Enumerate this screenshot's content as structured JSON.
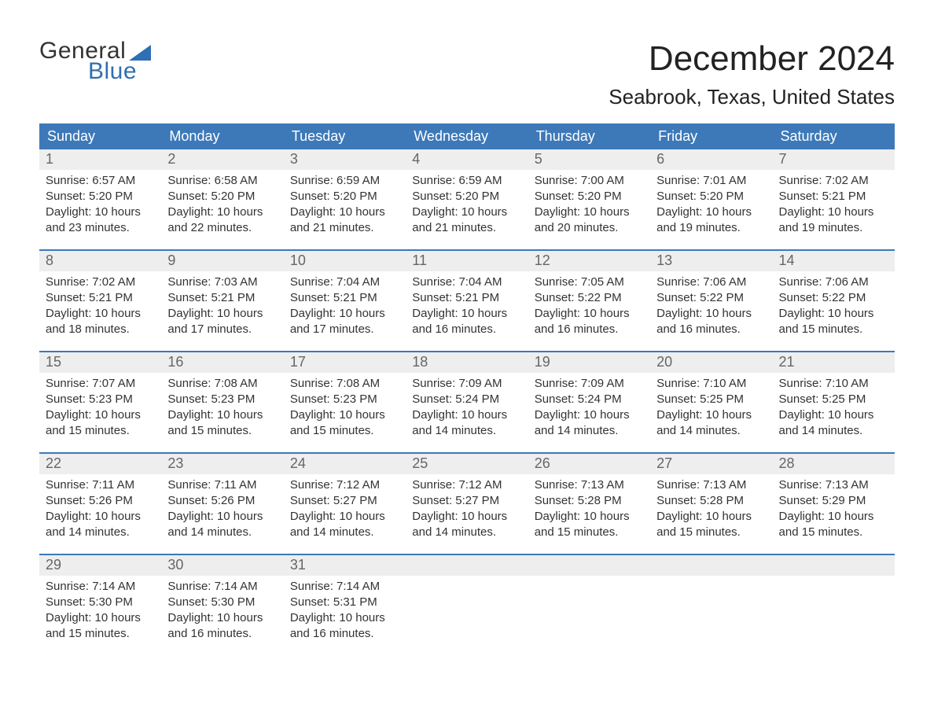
{
  "logo": {
    "word1": "General",
    "word2": "Blue",
    "word1_color": "#333333",
    "word2_color": "#2f6fb3",
    "sail_color": "#2f6fb3"
  },
  "header": {
    "month_title": "December 2024",
    "location": "Seabrook, Texas, United States"
  },
  "styling": {
    "header_bg": "#3d79b8",
    "header_text_color": "#ffffff",
    "daynum_bg": "#eeeeee",
    "daynum_color": "#666666",
    "body_text_color": "#333333",
    "row_divider_color": "#3d79b8",
    "background_color": "#ffffff",
    "header_fontsize": 18,
    "month_title_fontsize": 44,
    "location_fontsize": 26,
    "daynum_fontsize": 18,
    "data_fontsize": 15
  },
  "day_labels": [
    "Sunday",
    "Monday",
    "Tuesday",
    "Wednesday",
    "Thursday",
    "Friday",
    "Saturday"
  ],
  "weeks": [
    [
      {
        "n": "1",
        "sunrise": "Sunrise: 6:57 AM",
        "sunset": "Sunset: 5:20 PM",
        "day1": "Daylight: 10 hours",
        "day2": "and 23 minutes."
      },
      {
        "n": "2",
        "sunrise": "Sunrise: 6:58 AM",
        "sunset": "Sunset: 5:20 PM",
        "day1": "Daylight: 10 hours",
        "day2": "and 22 minutes."
      },
      {
        "n": "3",
        "sunrise": "Sunrise: 6:59 AM",
        "sunset": "Sunset: 5:20 PM",
        "day1": "Daylight: 10 hours",
        "day2": "and 21 minutes."
      },
      {
        "n": "4",
        "sunrise": "Sunrise: 6:59 AM",
        "sunset": "Sunset: 5:20 PM",
        "day1": "Daylight: 10 hours",
        "day2": "and 21 minutes."
      },
      {
        "n": "5",
        "sunrise": "Sunrise: 7:00 AM",
        "sunset": "Sunset: 5:20 PM",
        "day1": "Daylight: 10 hours",
        "day2": "and 20 minutes."
      },
      {
        "n": "6",
        "sunrise": "Sunrise: 7:01 AM",
        "sunset": "Sunset: 5:20 PM",
        "day1": "Daylight: 10 hours",
        "day2": "and 19 minutes."
      },
      {
        "n": "7",
        "sunrise": "Sunrise: 7:02 AM",
        "sunset": "Sunset: 5:21 PM",
        "day1": "Daylight: 10 hours",
        "day2": "and 19 minutes."
      }
    ],
    [
      {
        "n": "8",
        "sunrise": "Sunrise: 7:02 AM",
        "sunset": "Sunset: 5:21 PM",
        "day1": "Daylight: 10 hours",
        "day2": "and 18 minutes."
      },
      {
        "n": "9",
        "sunrise": "Sunrise: 7:03 AM",
        "sunset": "Sunset: 5:21 PM",
        "day1": "Daylight: 10 hours",
        "day2": "and 17 minutes."
      },
      {
        "n": "10",
        "sunrise": "Sunrise: 7:04 AM",
        "sunset": "Sunset: 5:21 PM",
        "day1": "Daylight: 10 hours",
        "day2": "and 17 minutes."
      },
      {
        "n": "11",
        "sunrise": "Sunrise: 7:04 AM",
        "sunset": "Sunset: 5:21 PM",
        "day1": "Daylight: 10 hours",
        "day2": "and 16 minutes."
      },
      {
        "n": "12",
        "sunrise": "Sunrise: 7:05 AM",
        "sunset": "Sunset: 5:22 PM",
        "day1": "Daylight: 10 hours",
        "day2": "and 16 minutes."
      },
      {
        "n": "13",
        "sunrise": "Sunrise: 7:06 AM",
        "sunset": "Sunset: 5:22 PM",
        "day1": "Daylight: 10 hours",
        "day2": "and 16 minutes."
      },
      {
        "n": "14",
        "sunrise": "Sunrise: 7:06 AM",
        "sunset": "Sunset: 5:22 PM",
        "day1": "Daylight: 10 hours",
        "day2": "and 15 minutes."
      }
    ],
    [
      {
        "n": "15",
        "sunrise": "Sunrise: 7:07 AM",
        "sunset": "Sunset: 5:23 PM",
        "day1": "Daylight: 10 hours",
        "day2": "and 15 minutes."
      },
      {
        "n": "16",
        "sunrise": "Sunrise: 7:08 AM",
        "sunset": "Sunset: 5:23 PM",
        "day1": "Daylight: 10 hours",
        "day2": "and 15 minutes."
      },
      {
        "n": "17",
        "sunrise": "Sunrise: 7:08 AM",
        "sunset": "Sunset: 5:23 PM",
        "day1": "Daylight: 10 hours",
        "day2": "and 15 minutes."
      },
      {
        "n": "18",
        "sunrise": "Sunrise: 7:09 AM",
        "sunset": "Sunset: 5:24 PM",
        "day1": "Daylight: 10 hours",
        "day2": "and 14 minutes."
      },
      {
        "n": "19",
        "sunrise": "Sunrise: 7:09 AM",
        "sunset": "Sunset: 5:24 PM",
        "day1": "Daylight: 10 hours",
        "day2": "and 14 minutes."
      },
      {
        "n": "20",
        "sunrise": "Sunrise: 7:10 AM",
        "sunset": "Sunset: 5:25 PM",
        "day1": "Daylight: 10 hours",
        "day2": "and 14 minutes."
      },
      {
        "n": "21",
        "sunrise": "Sunrise: 7:10 AM",
        "sunset": "Sunset: 5:25 PM",
        "day1": "Daylight: 10 hours",
        "day2": "and 14 minutes."
      }
    ],
    [
      {
        "n": "22",
        "sunrise": "Sunrise: 7:11 AM",
        "sunset": "Sunset: 5:26 PM",
        "day1": "Daylight: 10 hours",
        "day2": "and 14 minutes."
      },
      {
        "n": "23",
        "sunrise": "Sunrise: 7:11 AM",
        "sunset": "Sunset: 5:26 PM",
        "day1": "Daylight: 10 hours",
        "day2": "and 14 minutes."
      },
      {
        "n": "24",
        "sunrise": "Sunrise: 7:12 AM",
        "sunset": "Sunset: 5:27 PM",
        "day1": "Daylight: 10 hours",
        "day2": "and 14 minutes."
      },
      {
        "n": "25",
        "sunrise": "Sunrise: 7:12 AM",
        "sunset": "Sunset: 5:27 PM",
        "day1": "Daylight: 10 hours",
        "day2": "and 14 minutes."
      },
      {
        "n": "26",
        "sunrise": "Sunrise: 7:13 AM",
        "sunset": "Sunset: 5:28 PM",
        "day1": "Daylight: 10 hours",
        "day2": "and 15 minutes."
      },
      {
        "n": "27",
        "sunrise": "Sunrise: 7:13 AM",
        "sunset": "Sunset: 5:28 PM",
        "day1": "Daylight: 10 hours",
        "day2": "and 15 minutes."
      },
      {
        "n": "28",
        "sunrise": "Sunrise: 7:13 AM",
        "sunset": "Sunset: 5:29 PM",
        "day1": "Daylight: 10 hours",
        "day2": "and 15 minutes."
      }
    ],
    [
      {
        "n": "29",
        "sunrise": "Sunrise: 7:14 AM",
        "sunset": "Sunset: 5:30 PM",
        "day1": "Daylight: 10 hours",
        "day2": "and 15 minutes."
      },
      {
        "n": "30",
        "sunrise": "Sunrise: 7:14 AM",
        "sunset": "Sunset: 5:30 PM",
        "day1": "Daylight: 10 hours",
        "day2": "and 16 minutes."
      },
      {
        "n": "31",
        "sunrise": "Sunrise: 7:14 AM",
        "sunset": "Sunset: 5:31 PM",
        "day1": "Daylight: 10 hours",
        "day2": "and 16 minutes."
      },
      null,
      null,
      null,
      null
    ]
  ]
}
